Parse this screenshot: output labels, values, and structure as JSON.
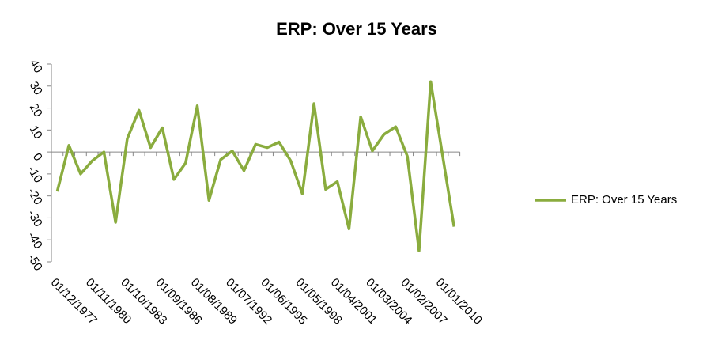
{
  "chart_data": {
    "type": "line",
    "title": "ERP: Over 15 Years",
    "categories": [
      "01/12/1977",
      null,
      null,
      "01/11/1980",
      null,
      null,
      "01/10/1983",
      null,
      null,
      "01/09/1986",
      null,
      null,
      "01/08/1989",
      null,
      null,
      "01/07/1992",
      null,
      null,
      "01/06/1995",
      null,
      null,
      "01/05/1998",
      null,
      null,
      "01/04/2001",
      null,
      null,
      "01/03/2004",
      null,
      null,
      "01/02/2007",
      null,
      null,
      "01/01/2010",
      null
    ],
    "series": [
      {
        "name": "ERP: Over 15 Years",
        "color": "#8aac3e",
        "values": [
          -18,
          3,
          -10,
          -4,
          0,
          -32,
          6,
          19,
          2,
          11,
          -12.5,
          -5,
          21,
          -22,
          -3.5,
          0.5,
          -8.5,
          3.5,
          2,
          4.5,
          -4,
          -19,
          22,
          -17,
          -13.5,
          -35,
          16,
          0.5,
          8,
          11.5,
          -2,
          -45,
          32,
          -1,
          -34
        ]
      }
    ],
    "ylim": [
      -50,
      40
    ],
    "yticks": [
      -50,
      -40,
      -30,
      -20,
      -10,
      0,
      10,
      20,
      30,
      40
    ],
    "legend": "right"
  }
}
